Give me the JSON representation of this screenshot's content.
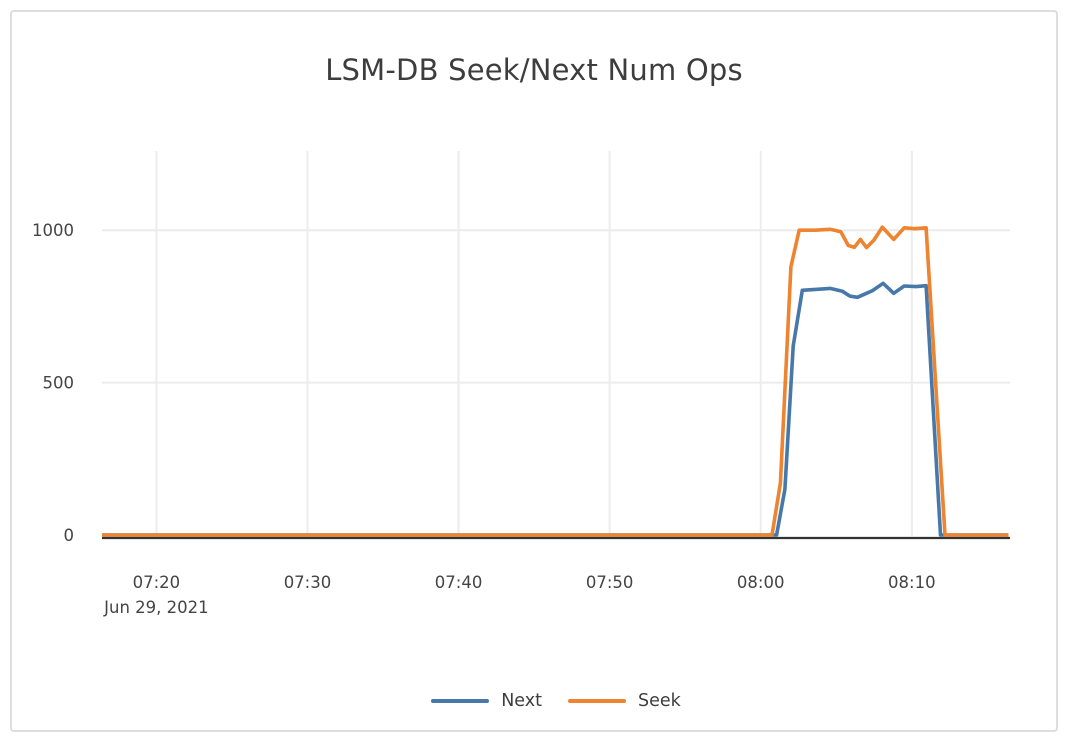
{
  "chart_data": {
    "type": "line",
    "title": "LSM-DB Seek/Next Num Ops",
    "xlabel": "",
    "ylabel": "",
    "x_axis": {
      "kind": "time",
      "date_sublabel": "Jun 29, 2021",
      "domain_minutes_of_day": [
        436.4,
        496.5
      ],
      "ticks": [
        {
          "minute": 440,
          "label": "07:20",
          "sublabel": "Jun 29, 2021"
        },
        {
          "minute": 450,
          "label": "07:30"
        },
        {
          "minute": 460,
          "label": "07:40"
        },
        {
          "minute": 470,
          "label": "07:50"
        },
        {
          "minute": 480,
          "label": "08:00"
        },
        {
          "minute": 490,
          "label": "08:10"
        }
      ]
    },
    "y_axis": {
      "domain": [
        0,
        1260
      ],
      "ticks": [
        {
          "value": 0,
          "label": "0"
        },
        {
          "value": 500,
          "label": "500"
        },
        {
          "value": 1000,
          "label": "1000"
        }
      ]
    },
    "grid": true,
    "legend_position": "bottom-center",
    "colors": {
      "next": "#4778aa",
      "seek": "#ee8330",
      "grid": "#ececec",
      "axis_baseline": "#333333",
      "tick_text": "#444444",
      "title_text": "#3d3d3d",
      "card_border": "#dedede",
      "background": "#ffffff"
    },
    "series": [
      {
        "name": "Next",
        "color_key": "next",
        "points": [
          [
            436.4,
            0
          ],
          [
            445,
            0
          ],
          [
            455,
            0
          ],
          [
            465,
            0
          ],
          [
            475,
            0
          ],
          [
            481.05,
            0
          ],
          [
            481.6,
            150
          ],
          [
            482.15,
            620
          ],
          [
            482.75,
            803
          ],
          [
            483.6,
            806
          ],
          [
            484.6,
            809
          ],
          [
            485.4,
            800
          ],
          [
            485.9,
            784
          ],
          [
            486.4,
            780
          ],
          [
            487.0,
            793
          ],
          [
            487.4,
            802
          ],
          [
            488.1,
            826
          ],
          [
            488.8,
            793
          ],
          [
            489.5,
            817
          ],
          [
            490.3,
            815
          ],
          [
            490.95,
            818
          ],
          [
            491.9,
            0
          ],
          [
            493.5,
            0
          ],
          [
            496.4,
            0
          ]
        ]
      },
      {
        "name": "Seek",
        "color_key": "seek",
        "points": [
          [
            436.4,
            0
          ],
          [
            445,
            0
          ],
          [
            455,
            0
          ],
          [
            465,
            0
          ],
          [
            475,
            0
          ],
          [
            480.75,
            0
          ],
          [
            481.3,
            170
          ],
          [
            482.0,
            880
          ],
          [
            482.55,
            1000
          ],
          [
            483.6,
            1000
          ],
          [
            484.6,
            1003
          ],
          [
            485.3,
            995
          ],
          [
            485.8,
            950
          ],
          [
            486.2,
            944
          ],
          [
            486.6,
            970
          ],
          [
            487.0,
            943
          ],
          [
            487.5,
            968
          ],
          [
            488.05,
            1010
          ],
          [
            488.8,
            970
          ],
          [
            489.5,
            1008
          ],
          [
            490.2,
            1005
          ],
          [
            490.95,
            1008
          ],
          [
            492.2,
            0
          ],
          [
            493.5,
            0
          ],
          [
            496.4,
            0
          ]
        ]
      }
    ]
  }
}
